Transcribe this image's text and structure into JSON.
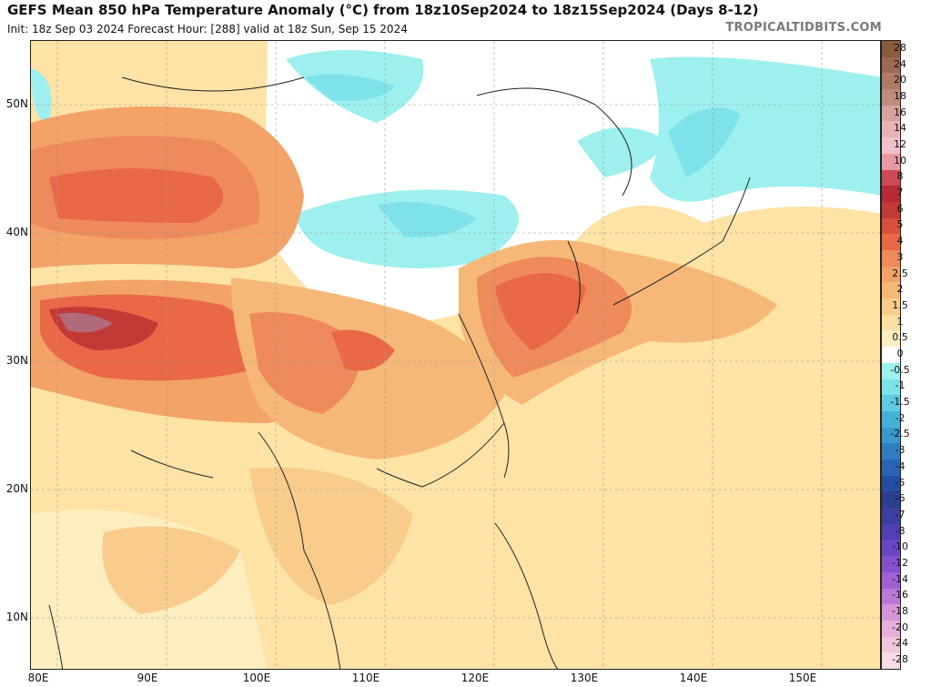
{
  "header": {
    "title": "GEFS Mean 850 hPa Temperature Anomaly (°C) from 18z10Sep2024 to 18z15Sep2024 (Days 8-12)",
    "subtitle": "Init: 18z Sep 03 2024   Forecast Hour: [288]   valid at 18z Sun, Sep 15 2024",
    "brand": "TROPICALTIDBITS.COM"
  },
  "axes": {
    "lat_labels": [
      "50N",
      "40N",
      "30N",
      "20N",
      "10N"
    ],
    "lon_labels": [
      "80E",
      "90E",
      "100E",
      "110E",
      "120E",
      "130E",
      "140E",
      "150E"
    ]
  },
  "colorbar": {
    "levels": [
      {
        "label": "28",
        "color": "#8a5a3c"
      },
      {
        "label": "24",
        "color": "#9c6a52"
      },
      {
        "label": "20",
        "color": "#ad7b66"
      },
      {
        "label": "18",
        "color": "#bf8c7c"
      },
      {
        "label": "16",
        "color": "#d8a29e"
      },
      {
        "label": "14",
        "color": "#e7b3b6"
      },
      {
        "label": "12",
        "color": "#f2c0c8"
      },
      {
        "label": "10",
        "color": "#e89aa4"
      },
      {
        "label": "8",
        "color": "#cc4a55"
      },
      {
        "label": "7",
        "color": "#b52a35"
      },
      {
        "label": "6",
        "color": "#c23a36"
      },
      {
        "label": "5",
        "color": "#d9503c"
      },
      {
        "label": "4",
        "color": "#e96848"
      },
      {
        "label": "3",
        "color": "#ee8a5c"
      },
      {
        "label": "2.5",
        "color": "#f3a268"
      },
      {
        "label": "2",
        "color": "#f6b878"
      },
      {
        "label": "1.5",
        "color": "#f9cc8c"
      },
      {
        "label": "1",
        "color": "#fcdfa2"
      },
      {
        "label": "0.5",
        "color": "#fdeec0"
      },
      {
        "label": "0",
        "color": "#ffffff"
      },
      {
        "label": "-0.5",
        "color": "#9ef0ee"
      },
      {
        "label": "-1",
        "color": "#7ee2ea"
      },
      {
        "label": "-1.5",
        "color": "#5ecbe2"
      },
      {
        "label": "-2",
        "color": "#44b2d8"
      },
      {
        "label": "-2.5",
        "color": "#3a98cc"
      },
      {
        "label": "-3",
        "color": "#307ec0"
      },
      {
        "label": "-4",
        "color": "#2a64b0"
      },
      {
        "label": "-5",
        "color": "#244ea0"
      },
      {
        "label": "-6",
        "color": "#2a3f8e"
      },
      {
        "label": "-7",
        "color": "#3c3ea0"
      },
      {
        "label": "-8",
        "color": "#5040b4"
      },
      {
        "label": "-10",
        "color": "#6a46c4"
      },
      {
        "label": "-12",
        "color": "#8450cc"
      },
      {
        "label": "-14",
        "color": "#a060d4"
      },
      {
        "label": "-16",
        "color": "#bc78d8"
      },
      {
        "label": "-18",
        "color": "#d494d8"
      },
      {
        "label": "-20",
        "color": "#e6aed8"
      },
      {
        "label": "-24",
        "color": "#f0c6dc"
      },
      {
        "label": "-28",
        "color": "#f8dce6"
      }
    ]
  }
}
